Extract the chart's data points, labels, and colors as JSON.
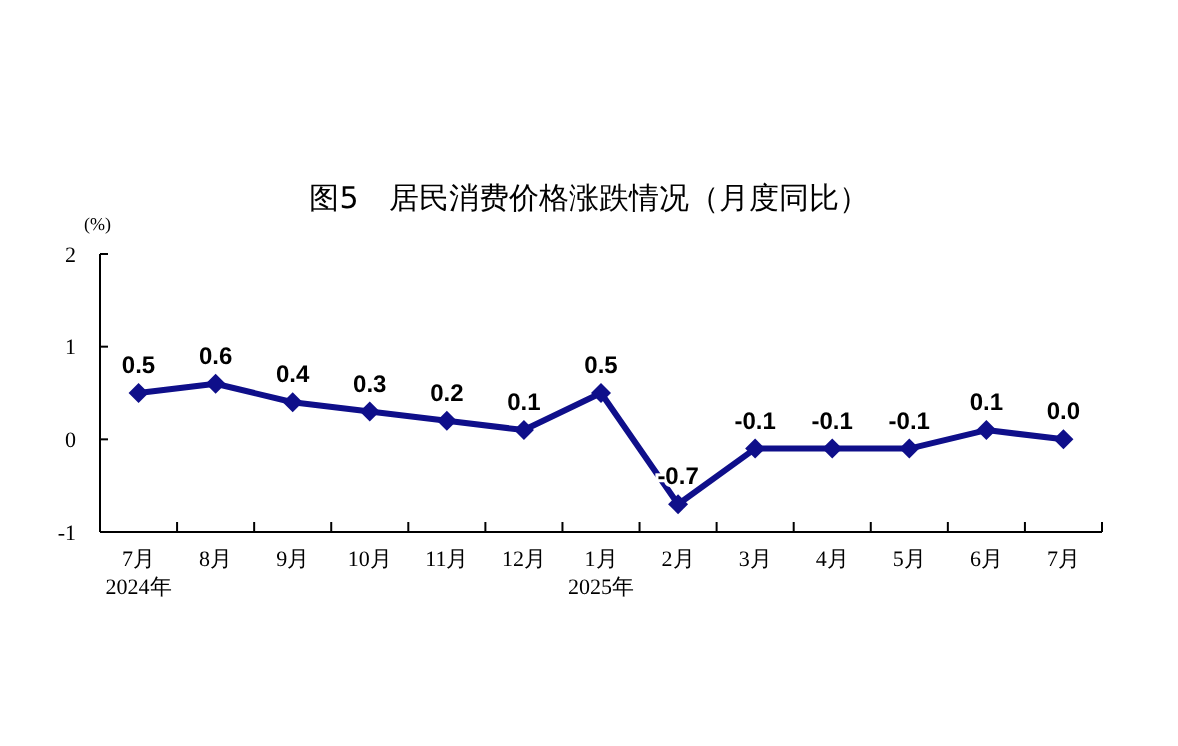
{
  "chart_data": {
    "type": "line",
    "title": "图5　居民消费价格涨跌情况（月度同比）",
    "ylabel": "(%)",
    "categories": [
      "7月\n2024年",
      "8月",
      "9月",
      "10月",
      "11月",
      "12月",
      "1月\n2025年",
      "2月",
      "3月",
      "4月",
      "5月",
      "6月",
      "7月"
    ],
    "series": [
      {
        "color": "#0f0f8a",
        "values": [
          0.5,
          0.6,
          0.4,
          0.3,
          0.2,
          0.1,
          0.5,
          -0.7,
          -0.1,
          -0.1,
          -0.1,
          0.1,
          0.0
        ],
        "value_labels": [
          "0.5",
          "0.6",
          "0.4",
          "0.3",
          "0.2",
          "0.1",
          "0.5",
          "-0.7",
          "-0.1",
          "-0.1",
          "-0.1",
          "0.1",
          "0.0"
        ]
      }
    ],
    "ylim": [
      -1,
      2
    ],
    "yticks": [
      -1,
      0,
      1,
      2
    ],
    "grid": false,
    "marker": "diamond",
    "line_style": "solid"
  }
}
